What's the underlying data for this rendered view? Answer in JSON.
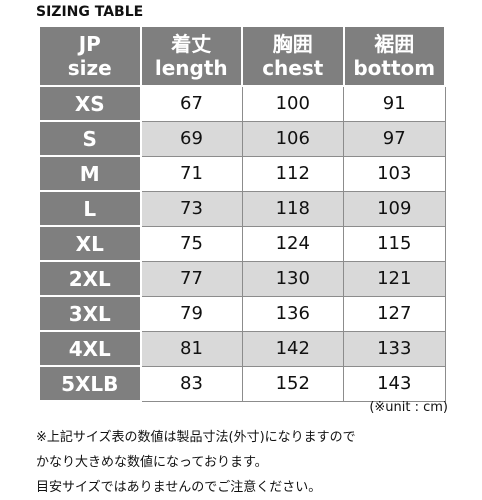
{
  "title": "SIZING TABLE",
  "table": {
    "header": [
      [
        "JP",
        "size"
      ],
      [
        "着丈",
        "length"
      ],
      [
        "胸囲",
        "chest"
      ],
      [
        "裾囲",
        "bottom"
      ]
    ],
    "rows": [
      [
        "XS",
        67,
        100,
        91
      ],
      [
        "S",
        69,
        106,
        97
      ],
      [
        "M",
        71,
        112,
        103
      ],
      [
        "L",
        73,
        118,
        109
      ],
      [
        "XL",
        75,
        124,
        115
      ],
      [
        "2XL",
        77,
        130,
        121
      ],
      [
        "3XL",
        79,
        136,
        127
      ],
      [
        "4XL",
        81,
        142,
        133
      ],
      [
        "5XLB",
        83,
        152,
        143
      ]
    ]
  },
  "unit_note": "(※unit : cm)",
  "notes": [
    "※上記サイズ表の数値は製品寸法(外寸)になりますので",
    "かなり大きめな数値になっております。",
    "目安サイズではありませんのでご注意ください。"
  ]
}
